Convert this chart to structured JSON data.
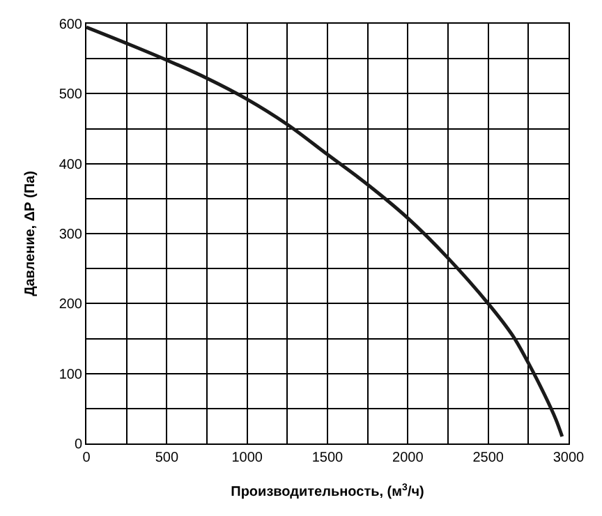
{
  "chart_data": {
    "type": "line",
    "xlabel": "Производительность, (м$^{3}$/ч)",
    "ylabel": "Давление, ΔР (Па)",
    "xlim": [
      0,
      3000
    ],
    "ylim": [
      0,
      600
    ],
    "xticks": [
      0,
      {
        "value": 250,
        "label": null
      },
      500,
      {
        "value": 750,
        "label": null
      },
      1000,
      {
        "value": 1250,
        "label": null
      },
      1500,
      {
        "value": 1750,
        "label": null
      },
      2000,
      {
        "value": 2250,
        "label": null
      },
      2500,
      {
        "value": 2750,
        "label": null
      },
      3000
    ],
    "yticks": [
      0,
      {
        "value": 50,
        "label": null
      },
      100,
      {
        "value": 150,
        "label": null
      },
      200,
      {
        "value": 250,
        "label": null
      },
      300,
      {
        "value": 350,
        "label": null
      },
      400,
      {
        "value": 450,
        "label": null
      },
      500,
      {
        "value": 550,
        "label": null
      },
      600
    ],
    "grid": true,
    "marker": "none",
    "line_style": "solid",
    "series": [
      {
        "color": "#1a1a1a",
        "x": [
          0,
          250,
          500,
          750,
          1000,
          1250,
          1500,
          1750,
          2000,
          2250,
          2500,
          2650,
          2750,
          2850,
          2920,
          2960
        ],
        "values": [
          595,
          572,
          548,
          522,
          492,
          456,
          413,
          370,
          322,
          265,
          200,
          155,
          115,
          70,
          35,
          10
        ]
      }
    ]
  }
}
